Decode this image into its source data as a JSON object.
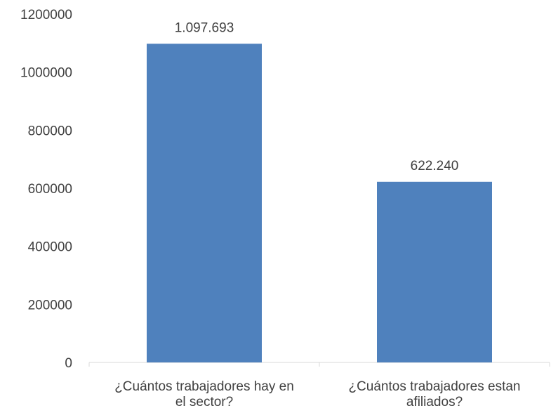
{
  "chart_data": {
    "type": "bar",
    "title": "",
    "xlabel": "",
    "ylabel": "",
    "categories": [
      "¿Cuántos trabajadores hay en el sector?",
      "¿Cuántos trabajadores estan afiliados?"
    ],
    "category_lines": [
      [
        "¿Cuántos trabajadores hay en",
        "el sector?"
      ],
      [
        "¿Cuántos trabajadores estan",
        "afiliados?"
      ]
    ],
    "values": [
      1097693,
      622240
    ],
    "data_labels": [
      "1.097.693",
      "622.240"
    ],
    "ylim": [
      0,
      1200000
    ],
    "yticks": [
      0,
      200000,
      400000,
      600000,
      800000,
      1000000,
      1200000
    ],
    "ytick_labels": [
      "0",
      "200000",
      "400000",
      "600000",
      "800000",
      "1000000",
      "1200000"
    ],
    "grid": false,
    "legend": "none",
    "bar_color": "#4f81bd",
    "axis_color": "#d9d9d9",
    "text_color": "#404040"
  }
}
